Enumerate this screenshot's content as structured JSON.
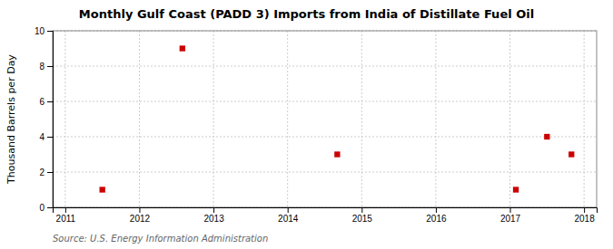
{
  "chart_data": {
    "type": "scatter",
    "title": "Monthly Gulf Coast (PADD 3) Imports from India of Distillate Fuel Oil",
    "ylabel": "Thousand Barrels per Day",
    "source": "Source: U.S. Energy Information Administration",
    "x": [
      2011.5,
      2012.58,
      2014.67,
      2017.08,
      2017.5,
      2017.83
    ],
    "values": [
      1,
      9,
      3,
      1,
      4,
      3
    ],
    "color": "#cc0000",
    "marker": "square",
    "xlim": [
      2010.83,
      2018.17
    ],
    "ylim": [
      0,
      10
    ],
    "xticks": [
      2011,
      2012,
      2013,
      2014,
      2015,
      2016,
      2017,
      2018
    ],
    "yticks": [
      0,
      2,
      4,
      6,
      8,
      10
    ],
    "grid": true
  }
}
